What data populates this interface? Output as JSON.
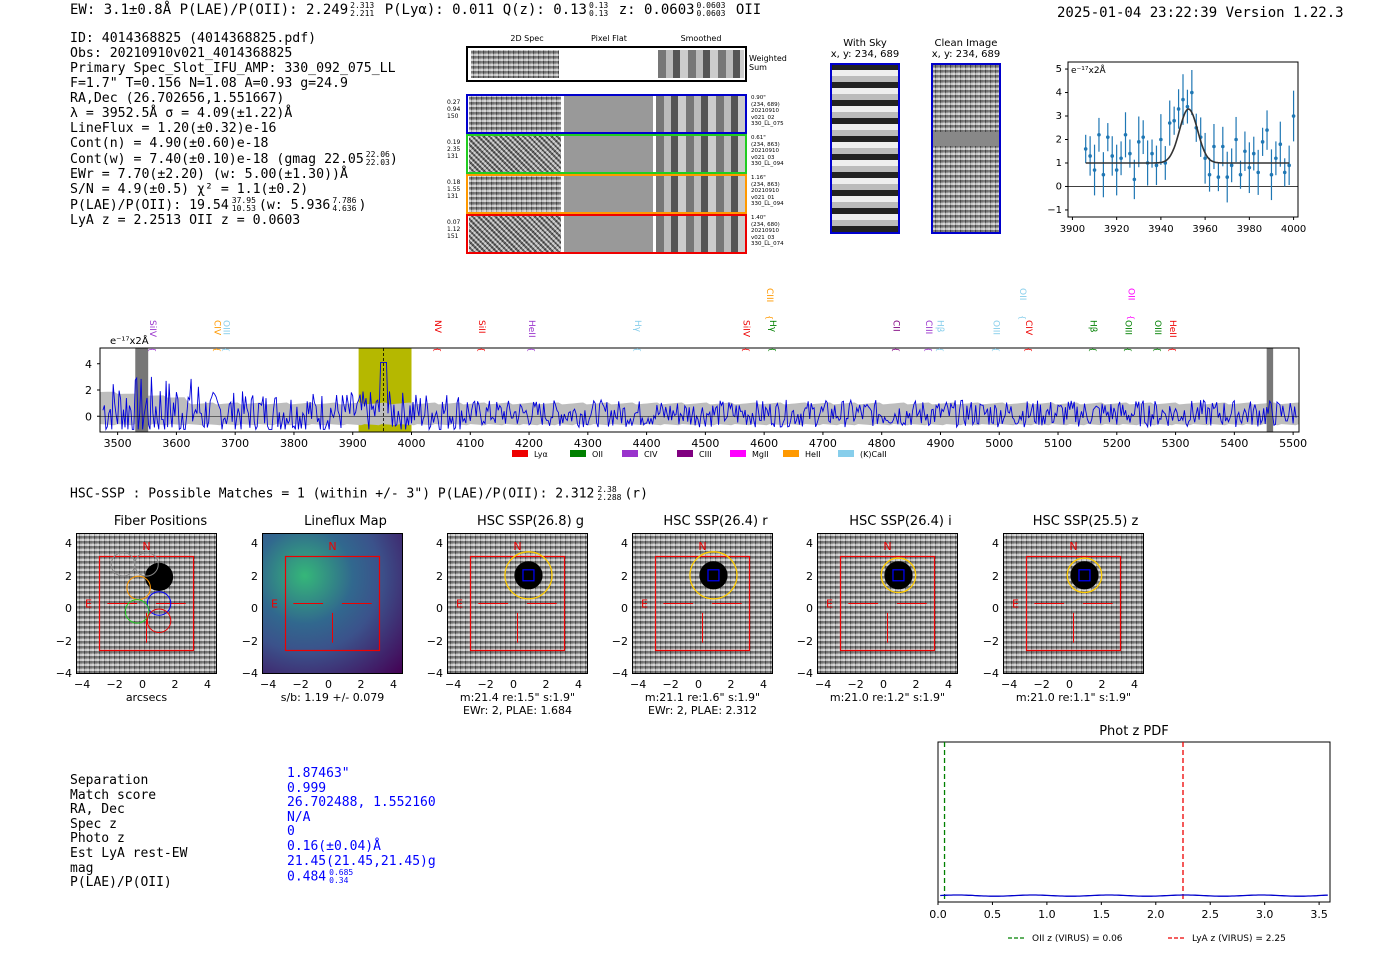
{
  "header": {
    "left": "EW: 3.1±0.8Å  P(LAE)/P(OII): 2.249",
    "left_sup": "2.313",
    "left_sub": "2.211",
    "plya": "P(Lyα): 0.011  Q(z): 0.13",
    "qz_sup": "0.13",
    "qz_sub": "0.13",
    "z": "z: 0.0603",
    "z_sup": "0.0603",
    "z_sub": "0.0603",
    "z_tail": "OII",
    "datetime": "2025-01-04 23:22:39  Version 1.22.3"
  },
  "info": [
    "ID: 4014368825 (4014368825.pdf)",
    "Obs: 20210910v021_4014368825",
    "Primary Spec_Slot_IFU_AMP: 330_092_075_LL",
    "F=1.7\"  T=0.156  N=1.08  A=0.93  g=24.9",
    "RA,Dec (26.702656,1.551667)",
    "λ = 3952.5Å  σ = 4.09(±1.22)Å",
    "LineFlux = 1.20(±0.32)e-16",
    "Cont(n) = 4.90(±0.60)e-18",
    "Cont(w) = 7.40(±0.10)e-18 (gmag 22.05",
    "EWr = 7.70(±2.20) (w: 5.00(±1.30))Å",
    "S/N = 4.9(±0.5)  χ² = 1.1(±0.2)",
    "P(LAE)/P(OII): 19.54",
    "LyA z = 2.2513  OII z = 0.0603"
  ],
  "info_sup": {
    "gmag_sup": "22.06",
    "gmag_sub": "22.03",
    "plae_sup": "37.95",
    "plae_sub": "10.53",
    "plae_w": "(w: 5.936",
    "plae_w_sup": "7.786",
    "plae_w_sub": "4.636"
  },
  "spec2d": {
    "col_headers": [
      "2D Spec",
      "Pixel Flat",
      "Smoothed"
    ],
    "weighted": "Weighted Sum",
    "rows": [
      {
        "left": [
          "0.27",
          "0.94",
          "150"
        ],
        "right": [
          "0.90\"",
          "(234, 689)",
          "20210910",
          "v021_02",
          "330_LL_075"
        ],
        "color": "#0000cc"
      },
      {
        "left": [
          "0.19",
          "2.35",
          "131"
        ],
        "right": [
          "0.61\"",
          "(234, 863)",
          "20210910",
          "v021_03",
          "330_LL_094"
        ],
        "color": "#22cc22"
      },
      {
        "left": [
          "0.18",
          "1.55",
          "131"
        ],
        "right": [
          "1.16\"",
          "(234, 863)",
          "20210910",
          "v021_01",
          "330_LL_094"
        ],
        "color": "#ff9900"
      },
      {
        "left": [
          "0.07",
          "1.12",
          "151"
        ],
        "right": [
          "1.40\"",
          "(234, 680)",
          "20210910",
          "v021_03",
          "330_LL_074"
        ],
        "color": "#ee0000"
      }
    ]
  },
  "sky": {
    "with_sky": "With Sky",
    "with_sky_xy": "x, y: 234, 689",
    "clean": "Clean Image",
    "clean_xy": "x, y: 234, 689"
  },
  "zoom_plot": {
    "ylabel": "e⁻¹⁷x2Å",
    "xticks": [
      "3900",
      "3920",
      "3940",
      "3960",
      "3980",
      "4000"
    ],
    "yticks": [
      "5",
      "4",
      "3",
      "2",
      "1",
      "0",
      "−1"
    ]
  },
  "spectrum": {
    "ylabel": "e⁻¹⁷x2Å",
    "xticks": [
      "3500",
      "3600",
      "3700",
      "3800",
      "3900",
      "4000",
      "4100",
      "4200",
      "4300",
      "4400",
      "4500",
      "4600",
      "4700",
      "4800",
      "4900",
      "5000",
      "5100",
      "5200",
      "5300",
      "5400",
      "5500"
    ],
    "yticks": [
      "4",
      "2",
      "0"
    ],
    "lines": [
      {
        "t": "SiIV",
        "c": "#9933cc",
        "x": 3550,
        "h": 0
      },
      {
        "t": "CIV",
        "c": "#ff9900",
        "x": 3660,
        "h": 0
      },
      {
        "t": "OIII",
        "c": "#87ceeb",
        "x": 3675,
        "h": 0
      },
      {
        "t": "NV",
        "c": "#ee0000",
        "x": 4035,
        "h": 0
      },
      {
        "t": "SiII",
        "c": "#ee0000",
        "x": 4110,
        "h": 0
      },
      {
        "t": "HeII",
        "c": "#9933cc",
        "x": 4195,
        "h": 0
      },
      {
        "t": "Hγ",
        "c": "#87ceeb",
        "x": 4375,
        "h": 0
      },
      {
        "t": "SiIV",
        "c": "#ee0000",
        "x": 4560,
        "h": 0
      },
      {
        "t": "CIII",
        "c": "#ff9900",
        "x": 4600,
        "h": 1
      },
      {
        "t": "Hγ",
        "c": "#008000",
        "x": 4605,
        "h": 0
      },
      {
        "t": "CII",
        "c": "#800080",
        "x": 4815,
        "h": 0
      },
      {
        "t": "CIII",
        "c": "#9933cc",
        "x": 4870,
        "h": 0
      },
      {
        "t": "Hβ",
        "c": "#87ceeb",
        "x": 4890,
        "h": 0
      },
      {
        "t": "OIII",
        "c": "#87ceeb",
        "x": 4985,
        "h": 0
      },
      {
        "t": "OII",
        "c": "#87ceeb",
        "x": 5030,
        "h": 1
      },
      {
        "t": "CIV",
        "c": "#ee0000",
        "x": 5040,
        "h": 0
      },
      {
        "t": "Hβ",
        "c": "#008000",
        "x": 5150,
        "h": 0
      },
      {
        "t": "OII",
        "c": "#ff00ff",
        "x": 5215,
        "h": 1
      },
      {
        "t": "OIII",
        "c": "#008000",
        "x": 5210,
        "h": 0
      },
      {
        "t": "OIII",
        "c": "#008000",
        "x": 5260,
        "h": 0
      },
      {
        "t": "HeII",
        "c": "#ee0000",
        "x": 5285,
        "h": 0
      }
    ],
    "legend": [
      {
        "t": "Lyα",
        "c": "#ee0000"
      },
      {
        "t": "OII",
        "c": "#008000"
      },
      {
        "t": "CIV",
        "c": "#9933cc"
      },
      {
        "t": "CIII",
        "c": "#800080"
      },
      {
        "t": "MgII",
        "c": "#ff00ff"
      },
      {
        "t": "HeII",
        "c": "#ff9900"
      },
      {
        "t": "(K)CaII",
        "c": "#87ceeb"
      }
    ]
  },
  "hsc": {
    "title": "HSC-SSP : Possible Matches = 1 (within +/- 3\")  P(LAE)/P(OII): 2.312",
    "title_sup": "2.38",
    "title_sub": "2.288",
    "title_tail": "(r)",
    "panels": [
      {
        "title": "Fiber Positions",
        "cap1": "arcsecs",
        "cap2": ""
      },
      {
        "title": "Lineflux Map",
        "cap1": "s/b: 1.19 +/- 0.079",
        "cap2": ""
      },
      {
        "title": "HSC SSP(26.8) g",
        "cap1": "m:21.4  re:1.5\"  s:1.9\"",
        "cap2": "EWr: 2, PLAE: 1.684"
      },
      {
        "title": "HSC SSP(26.4) r",
        "cap1": "m:21.1  re:1.6\"  s:1.9\"",
        "cap2": "EWr: 2, PLAE: 2.312"
      },
      {
        "title": "HSC SSP(26.4) i",
        "cap1": "m:21.0  re:1.2\"  s:1.9\"",
        "cap2": ""
      },
      {
        "title": "HSC SSP(25.5) z",
        "cap1": "m:21.0  re:1.1\"  s:1.9\"",
        "cap2": ""
      }
    ],
    "ticks": [
      "4",
      "2",
      "0",
      "−2",
      "−4"
    ],
    "xticks": [
      "−4",
      "−2",
      "0",
      "2",
      "4"
    ],
    "n_label": "N",
    "e_label": "E"
  },
  "match": {
    "labels": [
      "Separation",
      "Match score",
      "RA, Dec",
      "Spec z",
      "Photo z",
      "Est LyA rest-EW",
      "mag",
      "P(LAE)/P(OII)"
    ],
    "values": [
      "1.87463\"",
      "0.999",
      "26.702488, 1.552160",
      "N/A",
      "0",
      "0.16(±0.04)Å",
      "21.45(21.45,21.45)g",
      "0.484"
    ],
    "plae_sup": "0.685",
    "plae_sub": "0.34"
  },
  "photz": {
    "title": "Phot z PDF",
    "xticks": [
      "0.0",
      "0.5",
      "1.0",
      "1.5",
      "2.0",
      "2.5",
      "3.0",
      "3.5"
    ],
    "legend_oii": "OII z (VIRUS) = 0.06",
    "legend_lya": "LyA z (VIRUS) = 2.25",
    "oii_z": 0.06,
    "lya_z": 2.25,
    "xlim": [
      0,
      3.6
    ]
  },
  "chart_data": [
    {
      "type": "scatter",
      "title": "",
      "xlabel": "",
      "ylabel": "e-17x2Å",
      "xlim": [
        3898,
        4002
      ],
      "ylim": [
        -1.3,
        5.3
      ],
      "x": [
        3906,
        3908,
        3910,
        3912,
        3914,
        3916,
        3918,
        3920,
        3922,
        3924,
        3926,
        3928,
        3930,
        3932,
        3934,
        3936,
        3938,
        3940,
        3942,
        3944,
        3946,
        3948,
        3950,
        3952,
        3954,
        3956,
        3958,
        3960,
        3962,
        3964,
        3966,
        3968,
        3970,
        3972,
        3974,
        3976,
        3978,
        3980,
        3982,
        3984,
        3986,
        3988,
        3990,
        3992,
        3994,
        3996,
        3998,
        4000
      ],
      "y": [
        1.6,
        1.3,
        0.7,
        2.2,
        0.5,
        2.1,
        1.3,
        0.7,
        1.2,
        2.2,
        1.4,
        0.3,
        1.9,
        2.1,
        1.0,
        1.4,
        0.9,
        2.0,
        1.0,
        2.7,
        2.8,
        3.3,
        3.7,
        3.4,
        4.0,
        2.5,
        2.1,
        1.2,
        0.5,
        1.7,
        0.4,
        1.7,
        0.4,
        0.9,
        2.0,
        0.5,
        1.5,
        0.8,
        1.4,
        0.6,
        1.9,
        2.4,
        0.5,
        1.2,
        1.8,
        0.6,
        0.9,
        3.0
      ],
      "fit_continuum": 1.0,
      "fit_peak": 3.3,
      "fit_center": 3952.5,
      "fit_sigma": 4.09
    },
    {
      "type": "line",
      "title": "",
      "xlabel": "",
      "ylabel": "e-17x2Å",
      "xlim": [
        3470,
        5510
      ],
      "ylim": [
        -1.2,
        5.2
      ],
      "highlight_band": [
        3910,
        4000
      ],
      "marker_x": 3952.5
    }
  ]
}
